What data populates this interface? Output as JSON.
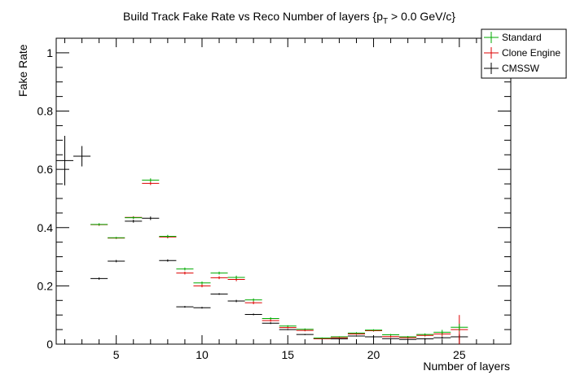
{
  "chart_data": {
    "type": "scatter",
    "title": "Build Track Fake Rate vs Reco Number of layers {p",
    "title_sub": "T",
    "title_tail": " > 0.0 GeV/c}",
    "xlabel": "Number of layers",
    "ylabel": "Fake Rate",
    "xlim": [
      1.5,
      28
    ],
    "ylim": [
      0,
      1.05
    ],
    "xticks": [
      5,
      10,
      15,
      20,
      25
    ],
    "yticks": [
      0,
      0.2,
      0.4,
      0.6,
      0.8,
      1
    ],
    "ytick_labels": [
      "0",
      "0.2",
      "0.4",
      "0.6",
      "0.8",
      "1"
    ],
    "grid": false,
    "legend_position": "top-right",
    "series": [
      {
        "name": "Standard",
        "color": "#00aa00",
        "x": [
          4,
          5,
          6,
          7,
          8,
          9,
          10,
          11,
          12,
          13,
          14,
          15,
          16,
          17,
          18,
          19,
          20,
          21,
          22,
          23,
          24,
          25
        ],
        "y": [
          0.411,
          0.365,
          0.434,
          0.563,
          0.37,
          0.258,
          0.21,
          0.244,
          0.229,
          0.152,
          0.088,
          0.062,
          0.051,
          0.021,
          0.025,
          0.038,
          0.048,
          0.032,
          0.025,
          0.033,
          0.041,
          0.058
        ],
        "yerr": [
          0.004,
          0.003,
          0.004,
          0.006,
          0.005,
          0.005,
          0.005,
          0.005,
          0.006,
          0.005,
          0.004,
          0.003,
          0.003,
          0.002,
          0.002,
          0.003,
          0.003,
          0.003,
          0.003,
          0.004,
          0.008,
          0.012
        ]
      },
      {
        "name": "Clone Engine",
        "color": "#dd0000",
        "x": [
          4,
          5,
          6,
          7,
          8,
          9,
          10,
          11,
          12,
          13,
          14,
          15,
          16,
          17,
          18,
          19,
          20,
          21,
          22,
          23,
          24,
          25
        ],
        "y": [
          0.41,
          0.364,
          0.435,
          0.552,
          0.368,
          0.244,
          0.2,
          0.228,
          0.222,
          0.142,
          0.081,
          0.057,
          0.047,
          0.019,
          0.022,
          0.035,
          0.046,
          0.026,
          0.022,
          0.03,
          0.035,
          0.05
        ],
        "yerr": [
          0.004,
          0.003,
          0.004,
          0.006,
          0.005,
          0.005,
          0.005,
          0.005,
          0.006,
          0.005,
          0.004,
          0.003,
          0.003,
          0.002,
          0.002,
          0.003,
          0.003,
          0.003,
          0.003,
          0.004,
          0.008,
          0.05
        ]
      },
      {
        "name": "CMSSW",
        "color": "#000000",
        "x": [
          2,
          3,
          4,
          5,
          6,
          7,
          8,
          9,
          10,
          11,
          12,
          13,
          14,
          15,
          16,
          17,
          18,
          19,
          20,
          21,
          22,
          23,
          24,
          25
        ],
        "y": [
          0.63,
          0.645,
          0.225,
          0.285,
          0.422,
          0.432,
          0.287,
          0.128,
          0.125,
          0.172,
          0.148,
          0.102,
          0.072,
          0.05,
          0.033,
          0.019,
          0.018,
          0.028,
          0.025,
          0.019,
          0.016,
          0.018,
          0.022,
          0.025
        ],
        "yerr": [
          0.085,
          0.035,
          0.004,
          0.004,
          0.005,
          0.006,
          0.004,
          0.003,
          0.003,
          0.003,
          0.004,
          0.003,
          0.003,
          0.002,
          0.002,
          0.002,
          0.002,
          0.002,
          0.002,
          0.002,
          0.002,
          0.003,
          0.004,
          0.01
        ]
      }
    ]
  }
}
